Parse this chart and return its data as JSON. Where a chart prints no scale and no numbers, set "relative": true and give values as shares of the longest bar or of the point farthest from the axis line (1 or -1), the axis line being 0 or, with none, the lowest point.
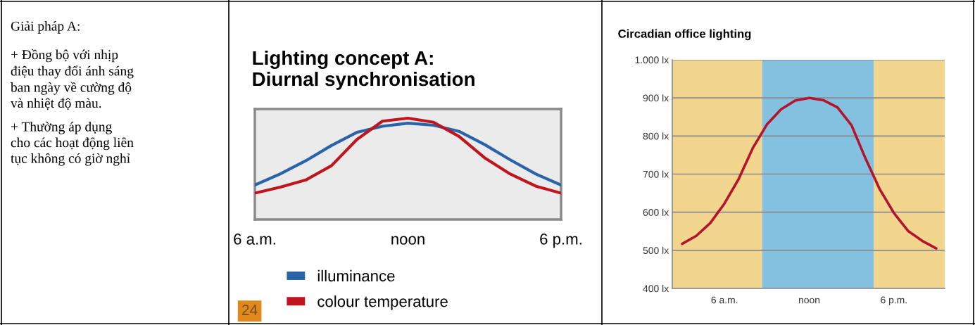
{
  "chart_data": [
    {
      "type": "other",
      "title": "Giải pháp A:",
      "annotations": [
        "+ Đồng bộ với nhịp\nđiệu thay đổi ánh sáng\nban ngày về cường độ\nvà nhiệt độ màu.",
        "+ Thường áp dụng\ncho các hoạt động liên\ntục không có giờ nghỉ"
      ]
    },
    {
      "type": "line",
      "title": "Lighting concept A:\nDiurnal synchronisation",
      "relative": true,
      "categories": [
        "6 a.m.",
        null,
        null,
        null,
        null,
        null,
        "noon",
        null,
        null,
        null,
        null,
        null,
        "6 p.m."
      ],
      "legend": "bottom",
      "annotations": [
        "24"
      ],
      "series": [
        {
          "name": "illuminance",
          "color": "#2a64a8",
          "values": [
            0.34,
            0.45,
            0.58,
            0.73,
            0.86,
            0.92,
            0.95,
            0.93,
            0.87,
            0.74,
            0.59,
            0.45,
            0.34
          ]
        },
        {
          "name": "colour temperature",
          "color": "#c0141e",
          "values": [
            0.26,
            0.32,
            0.39,
            0.53,
            0.79,
            0.97,
            1.0,
            0.96,
            0.82,
            0.61,
            0.45,
            0.33,
            0.26
          ]
        }
      ]
    },
    {
      "type": "line",
      "title": "Circadian office lighting",
      "categories": [
        null,
        null,
        null,
        "6 a.m.",
        null,
        null,
        null,
        null,
        null,
        "noon",
        null,
        null,
        null,
        null,
        null,
        "6 p.m.",
        null,
        null,
        null
      ],
      "ylim": [
        400,
        1000
      ],
      "yticks": [
        {
          "value": 400,
          "label": "400 lx"
        },
        {
          "value": 500,
          "label": "500 lx"
        },
        {
          "value": 600,
          "label": "600 lx"
        },
        {
          "value": 700,
          "label": "700 lx"
        },
        {
          "value": 800,
          "label": "800 lx"
        },
        {
          "value": 900,
          "label": "900 lx"
        },
        {
          "value": 1000,
          "label": "1.000 lx"
        }
      ],
      "grid": "y",
      "series": [
        {
          "color": "#b5142e",
          "values": [
            517,
            538,
            572,
            623,
            687,
            768,
            830,
            870,
            893,
            900,
            894,
            875,
            828,
            740,
            660,
            598,
            551,
            525,
            505
          ]
        }
      ]
    }
  ]
}
